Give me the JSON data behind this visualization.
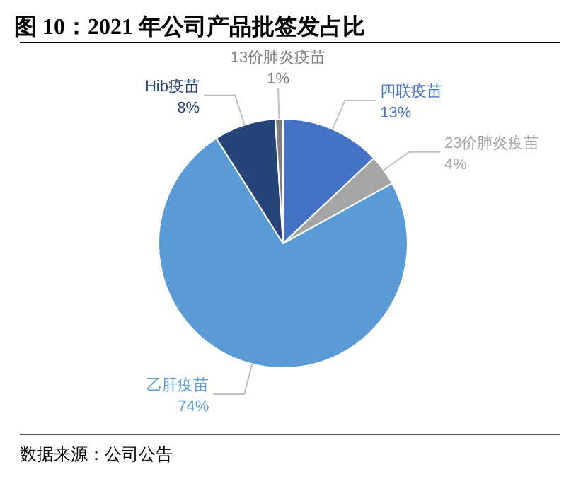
{
  "chart_data": {
    "type": "pie",
    "title": "图 10：2021 年公司产品批签发占比",
    "categories": [
      "四联疫苗",
      "23价肺炎疫苗",
      "乙肝疫苗",
      "Hib疫苗",
      "13价肺炎疫苗"
    ],
    "values": [
      13,
      4,
      74,
      8,
      1
    ],
    "colors": [
      "#4472c4",
      "#a5a5a5",
      "#5b9bd5",
      "#264478",
      "#7f7f7f"
    ],
    "value_labels": [
      "13%",
      "4%",
      "74%",
      "8%",
      "1%"
    ],
    "annotations": [
      "数据来源：公司公告"
    ]
  }
}
